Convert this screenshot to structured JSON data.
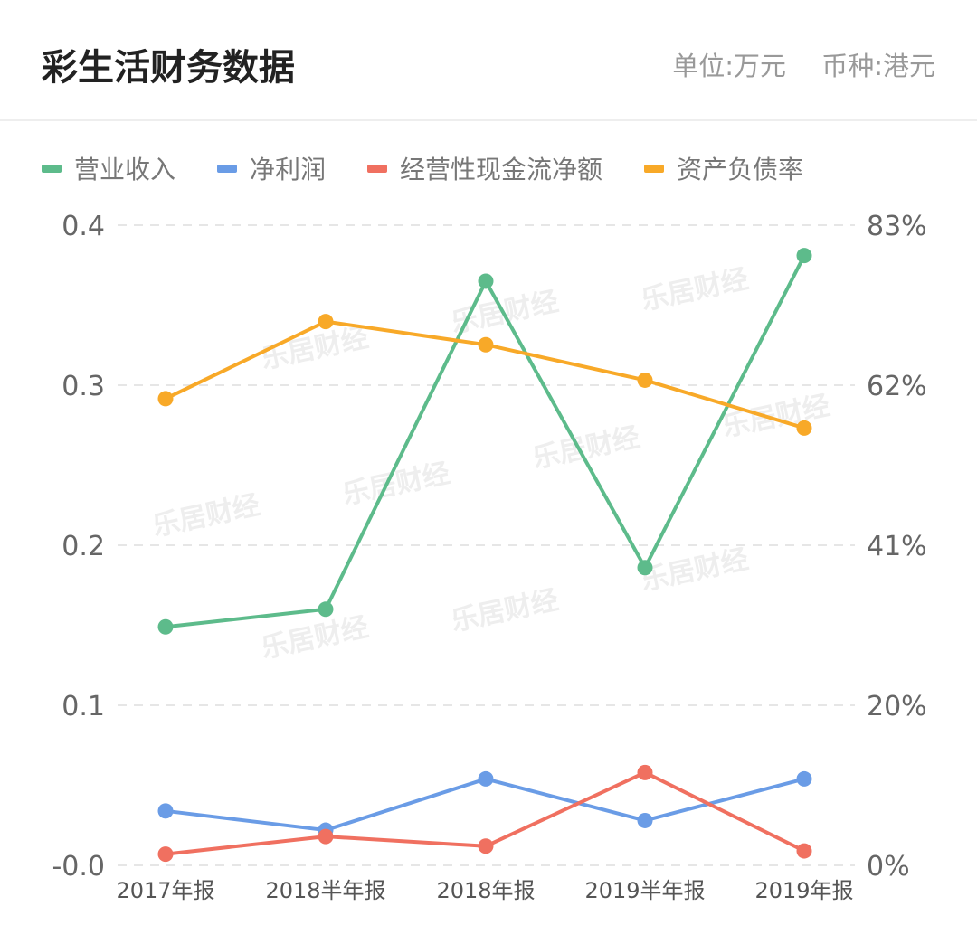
{
  "header": {
    "title": "彩生活财务数据",
    "unit": "单位:万元",
    "currency": "币种:港元"
  },
  "colors": {
    "revenue": "#5dbb8b",
    "net_profit": "#6a9ce6",
    "cash_flow": "#f07060",
    "debt_ratio": "#f8a928"
  },
  "chart_data": {
    "type": "line",
    "categories": [
      "2017年报",
      "2018半年报",
      "2018年报",
      "2019半年报",
      "2019年报"
    ],
    "y_left": {
      "ticks": [
        "0.4",
        "0.3",
        "0.2",
        "0.1",
        "-0.0"
      ],
      "range": [
        0,
        0.4
      ]
    },
    "y_right": {
      "ticks": [
        "83%",
        "62%",
        "41%",
        "20%",
        "0%"
      ],
      "range": [
        0,
        83
      ]
    },
    "grid": true,
    "legend_position": "top-left",
    "series": [
      {
        "name": "营业收入",
        "axis": "left",
        "color_key": "revenue",
        "values": [
          0.149,
          0.16,
          0.365,
          0.186,
          0.381
        ]
      },
      {
        "name": "净利润",
        "axis": "left",
        "color_key": "net_profit",
        "values": [
          0.034,
          0.022,
          0.054,
          0.028,
          0.054
        ]
      },
      {
        "name": "经营性现金流净额",
        "axis": "left",
        "color_key": "cash_flow",
        "values": [
          0.007,
          0.018,
          0.012,
          0.058,
          0.009
        ]
      },
      {
        "name": "资产负债率",
        "axis": "right",
        "color_key": "debt_ratio",
        "values": [
          60.5,
          70.5,
          67.5,
          62.9,
          56.7
        ]
      }
    ]
  },
  "watermark": "乐居财经"
}
